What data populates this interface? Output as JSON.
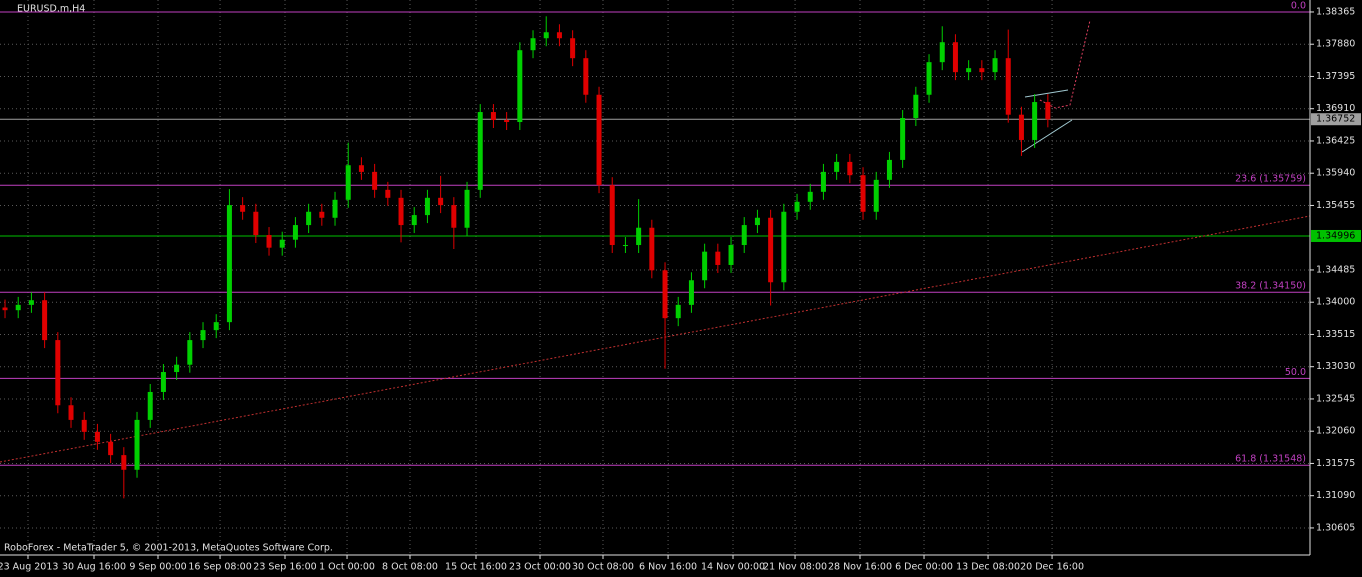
{
  "chart_data": {
    "type": "candlestick",
    "title": "EURUSD.m,H4",
    "footer": "RoboForex - MetaTrader 5, © 2001-2013, MetaQuotes Software Corp.",
    "up_color": "#00d000",
    "down_color": "#e00000",
    "grid": true,
    "xlim": [
      -0.38,
      98.86
    ],
    "ylim": [
      1.30198,
      1.38545
    ],
    "xticks": [
      {
        "value": 1.74,
        "label": "23 Aug 2013"
      },
      {
        "value": 6.74,
        "label": "30 Aug 16:00"
      },
      {
        "value": 11.59,
        "label": "9 Sep 00:00"
      },
      {
        "value": 16.29,
        "label": "16 Sep 08:00"
      },
      {
        "value": 21.21,
        "label": "23 Sep 16:00"
      },
      {
        "value": 25.91,
        "label": "1 Oct 00:00"
      },
      {
        "value": 30.68,
        "label": "8 Oct 08:00"
      },
      {
        "value": 35.68,
        "label": "15 Oct 16:00"
      },
      {
        "value": 40.53,
        "label": "23 Oct 00:00"
      },
      {
        "value": 45.3,
        "label": "30 Oct 08:00"
      },
      {
        "value": 50.23,
        "label": "6 Nov 16:00"
      },
      {
        "value": 55.15,
        "label": "14 Nov 00:00"
      },
      {
        "value": 59.85,
        "label": "21 Nov 08:00"
      },
      {
        "value": 64.77,
        "label": "28 Nov 16:00"
      },
      {
        "value": 69.62,
        "label": "6 Dec 00:00"
      },
      {
        "value": 74.47,
        "label": "13 Dec 08:00"
      },
      {
        "value": 79.32,
        "label": "20 Dec 16:00"
      }
    ],
    "yticks": [
      1.38365,
      {
        "value": 1.3788,
        "label": "1.37880"
      },
      1.37395,
      {
        "value": 1.3691,
        "label": "1.36910"
      },
      1.36425,
      {
        "value": 1.3594,
        "label": "1.35940"
      },
      1.35455,
      1.34485,
      {
        "value": 1.34,
        "label": "1.34000"
      },
      1.33515,
      {
        "value": 1.3303,
        "label": "1.33030"
      },
      1.32545,
      {
        "value": 1.3206,
        "label": "1.32060"
      },
      1.31575,
      {
        "value": 1.3109,
        "label": "1.31090"
      },
      1.30605
    ],
    "open": [
      1.3392,
      1.3388,
      1.3396,
      1.3403,
      1.3343,
      1.3245,
      1.3223,
      1.3205,
      1.319,
      1.317,
      1.3148,
      1.3223,
      1.3265,
      1.3295,
      1.3306,
      1.3343,
      1.3358,
      1.337,
      1.3546,
      1.3536,
      1.3501,
      1.3482,
      1.3494,
      1.3516,
      1.3536,
      1.3527,
      1.3554,
      1.3606,
      1.3596,
      1.3569,
      1.3557,
      1.3516,
      1.3531,
      1.3557,
      1.3546,
      1.3512,
      1.3569,
      1.3686,
      1.3674,
      1.3671,
      1.3779,
      1.3797,
      1.3806,
      1.3797,
      1.3767,
      1.3712,
      1.3576,
      1.3486,
      1.3486,
      1.3512,
      1.3448,
      1.3376,
      1.3396,
      1.3433,
      1.3476,
      1.3456,
      1.3486,
      1.3516,
      1.3527,
      1.343,
      1.3536,
      1.3551,
      1.3566,
      1.3596,
      1.3611,
      1.3591,
      1.3536,
      1.3584,
      1.3614,
      1.3677,
      1.3712,
      1.3761,
      1.3791,
      1.3746,
      1.3752,
      1.3746,
      1.3767,
      1.3682,
      1.3644,
      1.3701
    ],
    "high": [
      1.3404,
      1.3408,
      1.3415,
      1.3415,
      1.3355,
      1.3257,
      1.3235,
      1.3217,
      1.3202,
      1.3182,
      1.3235,
      1.3277,
      1.3307,
      1.3318,
      1.3355,
      1.337,
      1.3382,
      1.357,
      1.3558,
      1.3548,
      1.3513,
      1.3506,
      1.3528,
      1.3548,
      1.3548,
      1.3566,
      1.364,
      1.3618,
      1.3608,
      1.3581,
      1.3569,
      1.3543,
      1.3569,
      1.359,
      1.3558,
      1.3581,
      1.3698,
      1.3698,
      1.3686,
      1.3791,
      1.3809,
      1.383,
      1.3818,
      1.3809,
      1.3779,
      1.3724,
      1.3588,
      1.3498,
      1.3555,
      1.3524,
      1.346,
      1.3408,
      1.3445,
      1.3488,
      1.3488,
      1.3498,
      1.3528,
      1.3539,
      1.3539,
      1.3548,
      1.3563,
      1.3578,
      1.3608,
      1.3623,
      1.3623,
      1.3603,
      1.3596,
      1.3626,
      1.3689,
      1.3724,
      1.3773,
      1.3815,
      1.3803,
      1.3764,
      1.3764,
      1.3779,
      1.381,
      1.3694,
      1.3713,
      1.3713
    ],
    "low": [
      1.3376,
      1.3376,
      1.3384,
      1.3331,
      1.3233,
      1.3211,
      1.3193,
      1.3178,
      1.3158,
      1.3105,
      1.3136,
      1.3211,
      1.3253,
      1.3283,
      1.3294,
      1.3331,
      1.3346,
      1.3358,
      1.3524,
      1.3489,
      1.347,
      1.347,
      1.3482,
      1.3504,
      1.3515,
      1.3515,
      1.3542,
      1.3584,
      1.3557,
      1.3545,
      1.349,
      1.3504,
      1.3519,
      1.3534,
      1.348,
      1.35,
      1.3557,
      1.3662,
      1.3659,
      1.3659,
      1.3767,
      1.3785,
      1.3785,
      1.3755,
      1.37,
      1.3564,
      1.3474,
      1.3474,
      1.3474,
      1.3436,
      1.33,
      1.3364,
      1.3384,
      1.3421,
      1.3444,
      1.3444,
      1.3474,
      1.3504,
      1.3395,
      1.3418,
      1.3524,
      1.3539,
      1.3554,
      1.3584,
      1.3579,
      1.3524,
      1.3524,
      1.3572,
      1.3602,
      1.3665,
      1.37,
      1.3749,
      1.3734,
      1.3734,
      1.3734,
      1.3734,
      1.367,
      1.362,
      1.3632,
      1.3663
    ],
    "close": [
      1.3388,
      1.3396,
      1.3403,
      1.3343,
      1.3245,
      1.3223,
      1.3205,
      1.319,
      1.317,
      1.3148,
      1.3223,
      1.3265,
      1.3295,
      1.3306,
      1.3343,
      1.3358,
      1.337,
      1.3546,
      1.3536,
      1.3501,
      1.3482,
      1.3494,
      1.3516,
      1.3536,
      1.3527,
      1.3554,
      1.3606,
      1.3596,
      1.3569,
      1.3557,
      1.3516,
      1.3531,
      1.3557,
      1.3546,
      1.3512,
      1.3569,
      1.3686,
      1.3674,
      1.3671,
      1.3779,
      1.3797,
      1.3806,
      1.3797,
      1.3767,
      1.3712,
      1.3576,
      1.3486,
      1.3486,
      1.3512,
      1.3448,
      1.3376,
      1.3396,
      1.3433,
      1.3476,
      1.3456,
      1.3486,
      1.3516,
      1.3527,
      1.343,
      1.3536,
      1.3551,
      1.3566,
      1.3596,
      1.3611,
      1.3591,
      1.3536,
      1.3584,
      1.3614,
      1.3677,
      1.3712,
      1.3761,
      1.3791,
      1.3746,
      1.3752,
      1.3746,
      1.3767,
      1.3682,
      1.3644,
      1.3701,
      1.3675
    ],
    "levels": [
      {
        "label": "0.0",
        "value": 1.38365,
        "color": "#c040c0"
      },
      {
        "label": "23.6 (1.35759)",
        "value": 1.35759,
        "color": "#c040c0"
      },
      {
        "label": "38.2 (1.34150)",
        "value": 1.3415,
        "color": "#c040c0"
      },
      {
        "label": "50.0",
        "value": 1.32855,
        "color": "#c040c0"
      },
      {
        "label": "61.8 (1.31548)",
        "value": 1.31548,
        "color": "#c040c0"
      }
    ],
    "price_lines": [
      {
        "label": "1.34996",
        "value": 1.34996,
        "color": "#00c000"
      },
      {
        "label": "1.36752",
        "value": 1.36752,
        "color": "#a0a0a0"
      }
    ],
    "drawings": [
      {
        "color": "#c03030",
        "dash": "2,2",
        "x": [
          -0.38,
          98.86
        ],
        "y": [
          1.31597,
          1.35296
        ]
      },
      {
        "color": "#a0c8d0",
        "dash": "",
        "x": [
          77.27,
          80.53
        ],
        "y": [
          1.37086,
          1.37191
        ]
      },
      {
        "color": "#a0c8d0",
        "dash": "",
        "x": [
          77.05,
          80.83
        ],
        "y": [
          1.36259,
          1.3674
        ]
      },
      {
        "color": "#e04060",
        "dash": "2,2",
        "x": [
          78.4,
          79.55,
          80.68,
          82.2
        ],
        "y": [
          1.37041,
          1.36921,
          1.36966,
          1.38244
        ]
      }
    ]
  }
}
